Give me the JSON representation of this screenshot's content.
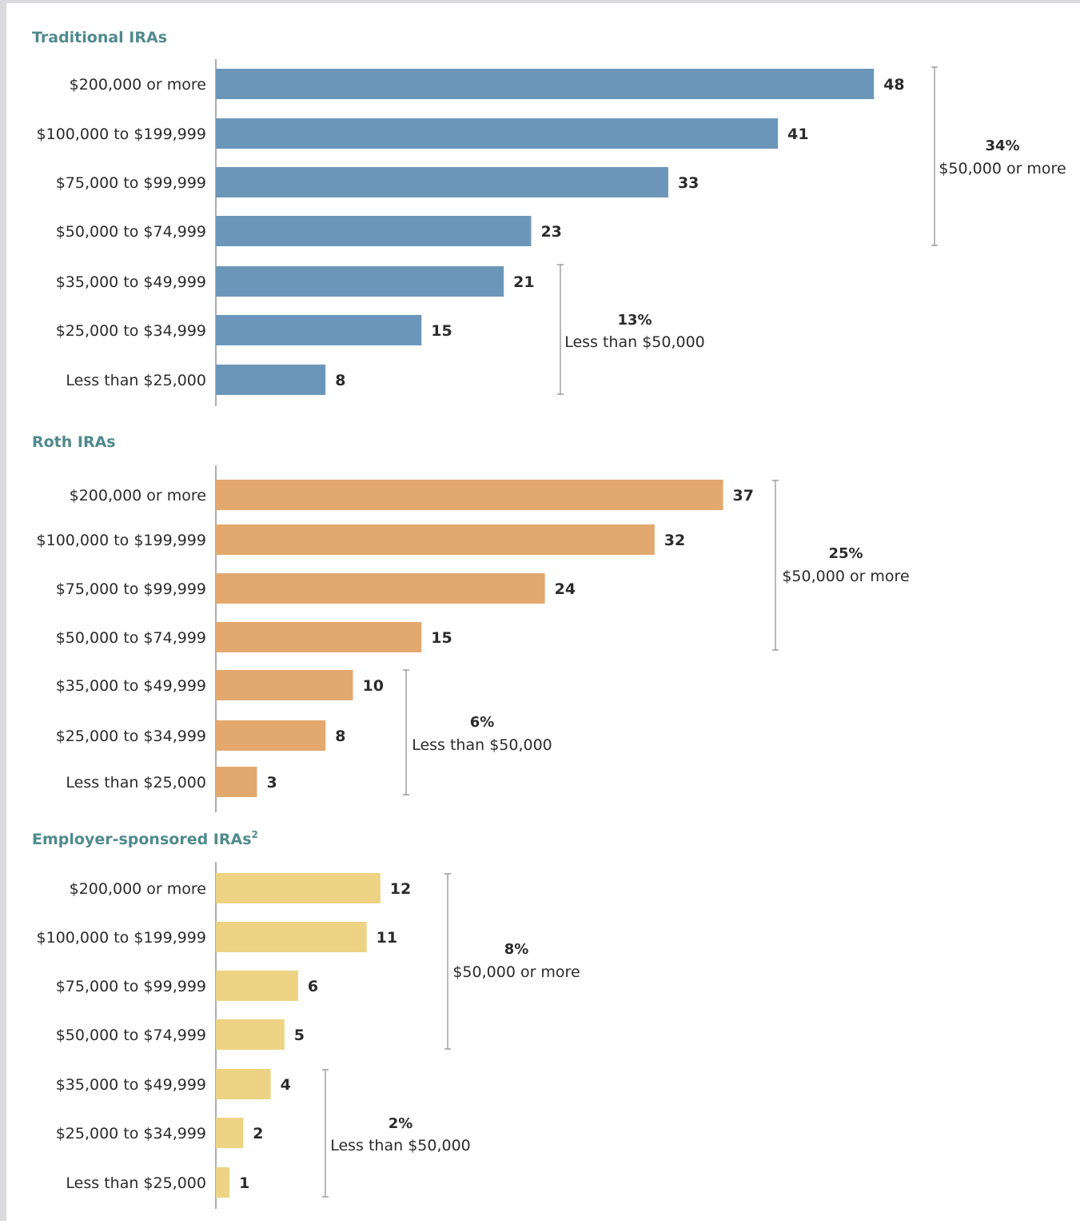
{
  "colors": {
    "traditional": "#6b96ba",
    "roth": "#e3a86e",
    "employer": "#edd383",
    "title": "#4f8a8e"
  },
  "chart_data": [
    {
      "type": "bar",
      "orientation": "horizontal",
      "title": "Traditional IRAs",
      "title_sup": "",
      "color_key": "traditional",
      "categories": [
        "$200,000 or more",
        "$100,000 to $199,999",
        "$75,000 to $99,999",
        "$50,000 to $74,999",
        "$35,000 to $49,999",
        "$25,000 to $34,999",
        "Less than $25,000"
      ],
      "values": [
        48,
        41,
        33,
        23,
        21,
        15,
        8
      ],
      "groups": [
        {
          "pct": "34%",
          "label": "$50,000 or more",
          "from": 0,
          "to": 3
        },
        {
          "pct": "13%",
          "label": "Less than $50,000",
          "from": 4,
          "to": 6
        }
      ]
    },
    {
      "type": "bar",
      "orientation": "horizontal",
      "title": "Roth IRAs",
      "title_sup": "",
      "color_key": "roth",
      "categories": [
        "$200,000 or more",
        "$100,000 to $199,999",
        "$75,000 to $99,999",
        "$50,000 to $74,999",
        "$35,000 to $49,999",
        "$25,000 to $34,999",
        "Less than $25,000"
      ],
      "values": [
        37,
        32,
        24,
        15,
        10,
        8,
        3
      ],
      "groups": [
        {
          "pct": "25%",
          "label": "$50,000 or more",
          "from": 0,
          "to": 3
        },
        {
          "pct": "6%",
          "label": "Less than $50,000",
          "from": 4,
          "to": 6
        }
      ]
    },
    {
      "type": "bar",
      "orientation": "horizontal",
      "title": "Employer-sponsored IRAs",
      "title_sup": "2",
      "color_key": "employer",
      "categories": [
        "$200,000 or more",
        "$100,000 to $199,999",
        "$75,000 to $99,999",
        "$50,000 to $74,999",
        "$35,000 to $49,999",
        "$25,000 to $34,999",
        "Less than $25,000"
      ],
      "values": [
        12,
        11,
        6,
        5,
        4,
        2,
        1
      ],
      "groups": [
        {
          "pct": "8%",
          "label": "$50,000 or more",
          "from": 0,
          "to": 3
        },
        {
          "pct": "2%",
          "label": "Less than $50,000",
          "from": 4,
          "to": 6
        }
      ]
    }
  ]
}
